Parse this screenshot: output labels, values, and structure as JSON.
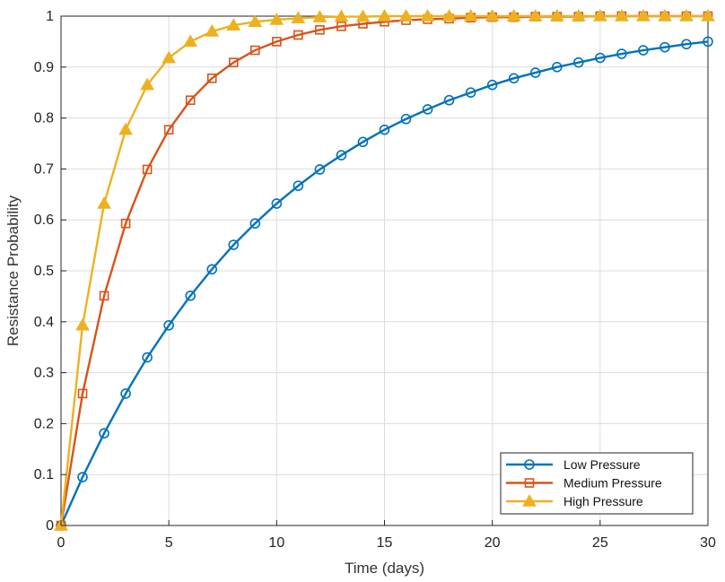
{
  "chart_data": {
    "type": "line",
    "title": "",
    "xlabel": "Time (days)",
    "ylabel": "Resistance Probability",
    "xlim": [
      0,
      30
    ],
    "ylim": [
      0,
      1
    ],
    "xticks": [
      0,
      5,
      10,
      15,
      20,
      25,
      30
    ],
    "yticks": [
      0,
      0.1,
      0.2,
      0.3,
      0.4,
      0.5,
      0.6,
      0.7,
      0.8,
      0.9,
      1
    ],
    "ytick_labels": [
      "0",
      "0.1",
      "0.2",
      "0.3",
      "0.4",
      "0.5",
      "0.6",
      "0.7",
      "0.8",
      "0.9",
      "1"
    ],
    "grid": true,
    "legend_position": "bottom-right",
    "x": [
      0,
      1,
      2,
      3,
      4,
      5,
      6,
      7,
      8,
      9,
      10,
      11,
      12,
      13,
      14,
      15,
      16,
      17,
      18,
      19,
      20,
      21,
      22,
      23,
      24,
      25,
      26,
      27,
      28,
      29,
      30
    ],
    "series": [
      {
        "name": "Low Pressure",
        "color": "#0072bd",
        "marker": "circle",
        "values": [
          0,
          0.095,
          0.181,
          0.259,
          0.33,
          0.393,
          0.451,
          0.503,
          0.551,
          0.593,
          0.632,
          0.667,
          0.699,
          0.727,
          0.753,
          0.777,
          0.798,
          0.817,
          0.835,
          0.85,
          0.865,
          0.878,
          0.889,
          0.9,
          0.909,
          0.918,
          0.926,
          0.933,
          0.939,
          0.945,
          0.95
        ]
      },
      {
        "name": "Medium Pressure",
        "color": "#d95319",
        "marker": "square",
        "values": [
          0,
          0.259,
          0.451,
          0.593,
          0.699,
          0.777,
          0.835,
          0.878,
          0.909,
          0.933,
          0.95,
          0.963,
          0.973,
          0.98,
          0.985,
          0.989,
          0.992,
          0.994,
          0.995,
          0.997,
          0.998,
          0.998,
          0.999,
          0.999,
          0.999,
          1,
          1,
          1,
          1,
          1,
          1
        ]
      },
      {
        "name": "High Pressure",
        "color": "#edb120",
        "marker": "triangle",
        "values": [
          0,
          0.393,
          0.632,
          0.777,
          0.865,
          0.918,
          0.95,
          0.97,
          0.982,
          0.989,
          0.993,
          0.996,
          0.998,
          0.999,
          0.999,
          1,
          1,
          1,
          1,
          1,
          1,
          1,
          1,
          1,
          1,
          1,
          1,
          1,
          1,
          1,
          1
        ]
      }
    ]
  }
}
